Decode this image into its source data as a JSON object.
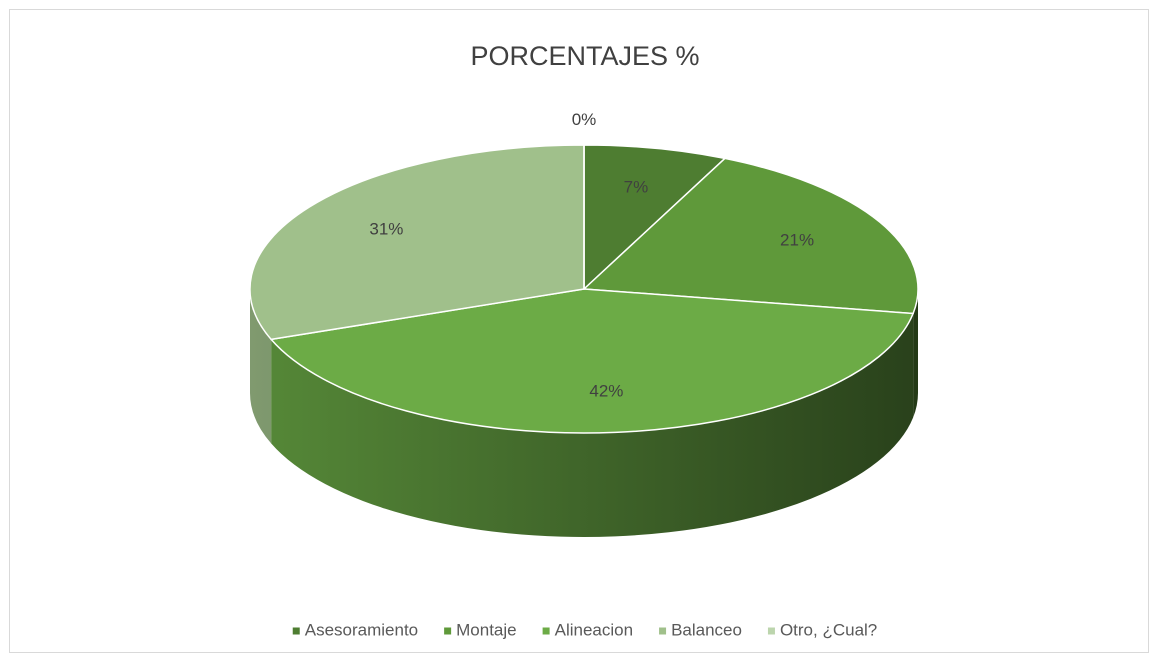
{
  "chart_data": {
    "type": "pie",
    "title": "PORCENTAJES %",
    "categories": [
      "Asesoramiento",
      "Montaje",
      "Alineacion",
      "Balanceo",
      "Otro, ¿Cual?"
    ],
    "values": [
      7,
      21,
      42,
      31,
      0
    ],
    "value_labels": [
      "7%",
      "21%",
      "42%",
      "31%",
      "0%"
    ],
    "colors": [
      "#4e7d31",
      "#5f993a",
      "#6cab46",
      "#a0c08b",
      "#bcd5ad"
    ],
    "legend": "bottom"
  }
}
